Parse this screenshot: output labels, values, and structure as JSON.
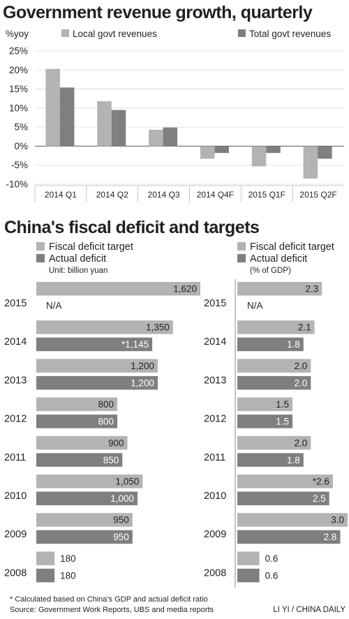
{
  "colors": {
    "light_bar": "#b3b3b3",
    "dark_bar": "#7f7f7f",
    "text": "#231f20",
    "grid": "#d9d9d9"
  },
  "chart_data": [
    {
      "type": "bar",
      "title": "Government revenue growth, quarterly",
      "ylabel": "%yoy",
      "categories": [
        "2014 Q1",
        "2014 Q2",
        "2014 Q3",
        "2014 Q4F",
        "2015 Q1F",
        "2015 Q2F"
      ],
      "series": [
        {
          "name": "Local govt revenues",
          "values": [
            20.3,
            11.8,
            4.3,
            -3.3,
            -5.3,
            -8.5
          ]
        },
        {
          "name": "Total govt revenues",
          "values": [
            15.4,
            9.5,
            4.9,
            -1.8,
            -1.8,
            -3.3
          ]
        }
      ],
      "ylim": [
        -10,
        25
      ],
      "yticks": [
        25,
        20,
        15,
        10,
        5,
        0,
        -5,
        -10
      ],
      "ytick_labels": [
        "25%",
        "20%",
        "15%",
        "10%",
        "5%",
        "0%",
        "-5%",
        "-10%"
      ],
      "legend_position": "top",
      "grid": true
    },
    {
      "type": "bar",
      "orientation": "horizontal",
      "title": "China's fiscal deficit and targets",
      "unit": "Unit: billion yuan",
      "categories": [
        "2015",
        "2014",
        "2013",
        "2012",
        "2011",
        "2010",
        "2009",
        "2008"
      ],
      "series": [
        {
          "name": "Fiscal deficit target",
          "values": [
            1620,
            1350,
            1200,
            800,
            900,
            1050,
            950,
            180
          ],
          "labels": [
            "1,620",
            "1,350",
            "1,200",
            "800",
            "900",
            "1,050",
            "950",
            "180"
          ]
        },
        {
          "name": "Actual deficit",
          "values": [
            null,
            1145,
            1200,
            800,
            850,
            1000,
            950,
            180
          ],
          "labels": [
            "N/A",
            "*1,145",
            "1,200",
            "800",
            "850",
            "1,000",
            "950",
            "180"
          ]
        }
      ],
      "xlim": [
        0,
        1620
      ]
    },
    {
      "type": "bar",
      "orientation": "horizontal",
      "unit": "(% of GDP)",
      "categories": [
        "2015",
        "2014",
        "2013",
        "2012",
        "2011",
        "2010",
        "2009",
        "2008"
      ],
      "series": [
        {
          "name": "Fiscal deficit target",
          "values": [
            2.3,
            2.1,
            2.0,
            1.5,
            2.0,
            2.6,
            3.0,
            0.6
          ],
          "labels": [
            "2.3",
            "2.1",
            "2.0",
            "1.5",
            "2.0",
            "*2.6",
            "3.0",
            "0.6"
          ]
        },
        {
          "name": "Actual deficit",
          "values": [
            null,
            1.8,
            2.0,
            1.5,
            1.8,
            2.5,
            2.8,
            0.6
          ],
          "labels": [
            "N/A",
            "1.8",
            "2.0",
            "1.5",
            "1.8",
            "2.5",
            "2.8",
            "0.6"
          ]
        }
      ],
      "xlim": [
        0,
        3.0
      ]
    }
  ],
  "footer": {
    "note": "* Calculated based on China's GDP and actual deficit ratio",
    "source": "Source: Government Work Reports, UBS and media reports",
    "credit": "LI YI / CHINA DAILY"
  }
}
